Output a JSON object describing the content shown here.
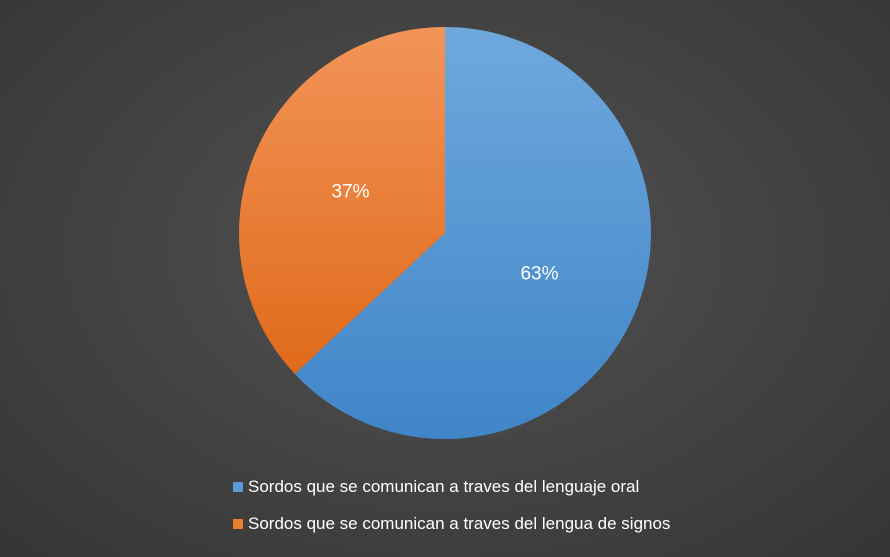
{
  "chart_data": {
    "type": "pie",
    "title": "",
    "legend_position": "bottom",
    "slices": [
      {
        "label": "Sordos que se comunican a traves del lenguaje oral",
        "value": 63,
        "display": "63%",
        "color": "#5B9BD5"
      },
      {
        "label": "Sordos que se comunican a traves del lengua de signos",
        "value": 37,
        "display": "37%",
        "color": "#ED7D31"
      }
    ]
  },
  "colors": {
    "background": "#424242",
    "label_text": "#FFFFFF"
  }
}
